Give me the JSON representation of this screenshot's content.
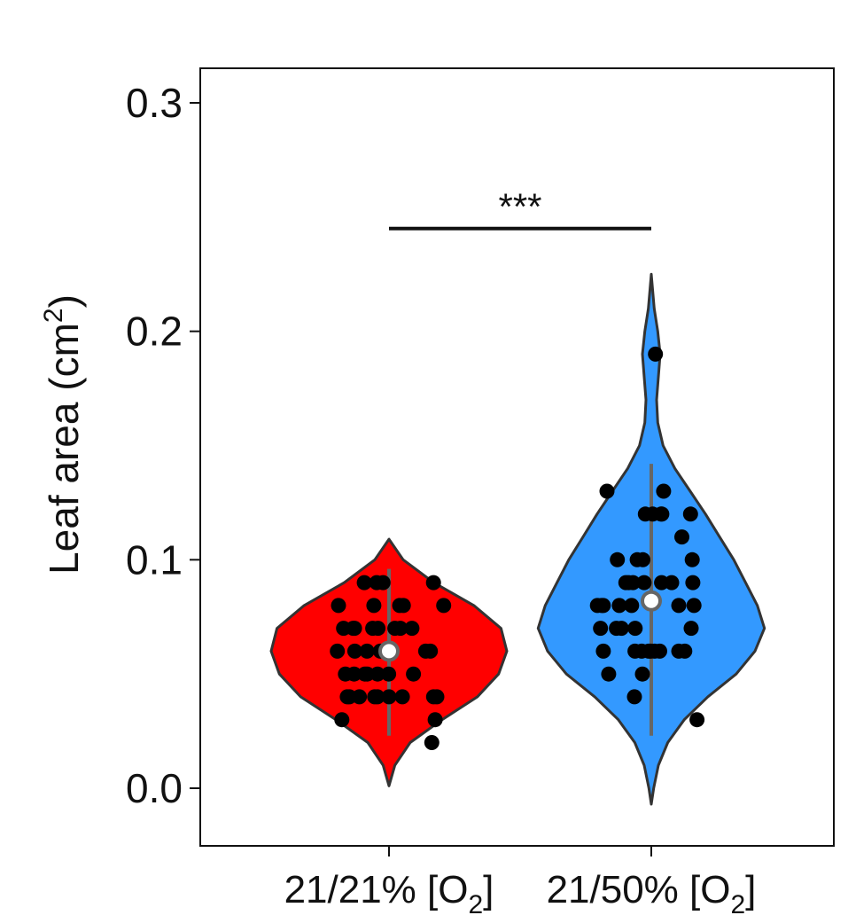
{
  "chart_data": {
    "type": "violin",
    "title": "",
    "ylabel": {
      "main": "Leaf area (cm",
      "sup": "2",
      "end": ")"
    },
    "ylim": [
      -0.025,
      0.315
    ],
    "yticks": [
      "0.0",
      "0.1",
      "0.2",
      "0.3"
    ],
    "ytick_values": [
      0.0,
      0.1,
      0.2,
      0.3
    ],
    "grid": false,
    "legend": "none",
    "categories": [
      {
        "main": "21/21% [O",
        "sub": "2",
        "end": "]"
      },
      {
        "main": "21/50% [O",
        "sub": "2",
        "end": "]"
      }
    ],
    "significance": {
      "label": "***",
      "between": [
        0,
        1
      ],
      "y": 0.245
    },
    "series": [
      {
        "color": "#ff0000",
        "median": 0.06,
        "whisker": [
          0.023,
          0.096
        ],
        "range": [
          0.001,
          0.109
        ],
        "density": [
          [
            0.001,
            0.0
          ],
          [
            0.01,
            0.05
          ],
          [
            0.02,
            0.18
          ],
          [
            0.03,
            0.45
          ],
          [
            0.04,
            0.75
          ],
          [
            0.05,
            0.93
          ],
          [
            0.06,
            1.0
          ],
          [
            0.07,
            0.95
          ],
          [
            0.08,
            0.72
          ],
          [
            0.09,
            0.38
          ],
          [
            0.1,
            0.12
          ],
          [
            0.109,
            0.0
          ]
        ],
        "points": [
          0.02,
          0.03,
          0.03,
          0.04,
          0.04,
          0.04,
          0.04,
          0.04,
          0.04,
          0.04,
          0.04,
          0.04,
          0.05,
          0.05,
          0.05,
          0.05,
          0.05,
          0.05,
          0.05,
          0.06,
          0.06,
          0.06,
          0.06,
          0.06,
          0.06,
          0.07,
          0.07,
          0.07,
          0.07,
          0.07,
          0.07,
          0.07,
          0.07,
          0.08,
          0.08,
          0.08,
          0.08,
          0.08,
          0.09,
          0.09,
          0.09,
          0.09
        ]
      },
      {
        "color": "#3399ff",
        "median": 0.082,
        "whisker": [
          0.023,
          0.142
        ],
        "range": [
          -0.007,
          0.225
        ],
        "density": [
          [
            -0.007,
            0.0
          ],
          [
            0.0,
            0.02
          ],
          [
            0.01,
            0.06
          ],
          [
            0.02,
            0.14
          ],
          [
            0.03,
            0.28
          ],
          [
            0.04,
            0.48
          ],
          [
            0.05,
            0.72
          ],
          [
            0.06,
            0.88
          ],
          [
            0.07,
            0.96
          ],
          [
            0.08,
            0.9
          ],
          [
            0.09,
            0.8
          ],
          [
            0.1,
            0.7
          ],
          [
            0.11,
            0.58
          ],
          [
            0.12,
            0.46
          ],
          [
            0.13,
            0.33
          ],
          [
            0.14,
            0.2
          ],
          [
            0.15,
            0.1
          ],
          [
            0.16,
            0.055
          ],
          [
            0.17,
            0.045
          ],
          [
            0.18,
            0.06
          ],
          [
            0.19,
            0.075
          ],
          [
            0.2,
            0.055
          ],
          [
            0.21,
            0.025
          ],
          [
            0.225,
            0.0
          ]
        ],
        "points": [
          0.03,
          0.04,
          0.05,
          0.05,
          0.06,
          0.06,
          0.06,
          0.06,
          0.06,
          0.06,
          0.06,
          0.06,
          0.06,
          0.07,
          0.07,
          0.07,
          0.07,
          0.07,
          0.08,
          0.08,
          0.08,
          0.08,
          0.08,
          0.08,
          0.08,
          0.09,
          0.09,
          0.09,
          0.09,
          0.09,
          0.09,
          0.09,
          0.1,
          0.1,
          0.1,
          0.1,
          0.11,
          0.12,
          0.12,
          0.12,
          0.12,
          0.12,
          0.13,
          0.13,
          0.19
        ]
      }
    ]
  }
}
